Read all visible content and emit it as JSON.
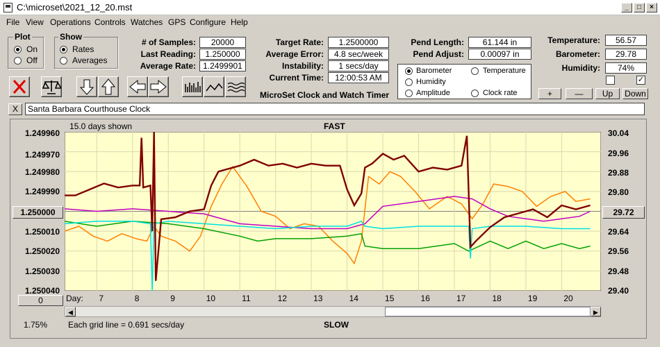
{
  "window": {
    "title": "C:\\microset\\2021_12_20.mst"
  },
  "menu": [
    "File",
    "View",
    "Operations",
    "Controls",
    "Watches",
    "GPS",
    "Configure",
    "Help"
  ],
  "plot_group": {
    "title": "Plot",
    "on": "On",
    "off": "Off",
    "selected": "On"
  },
  "show_group": {
    "title": "Show",
    "rates": "Rates",
    "averages": "Averages",
    "selected": "Rates"
  },
  "stats": {
    "samples_label": "# of Samples:",
    "samples": "20000",
    "last_label": "Last Reading:",
    "last": "1.250000",
    "avg_label": "Average Rate:",
    "avg": "1.2499901",
    "target_label": "Target Rate:",
    "target": "1.2500000",
    "err_label": "Average Error:",
    "err": "4.8 sec/week",
    "inst_label": "Instability:",
    "inst": "1 secs/day",
    "time_label": "Current Time:",
    "time": "12:00:53 AM",
    "pend_len_label": "Pend Length:",
    "pend_len": "61.144 in",
    "pend_adj_label": "Pend Adjust:",
    "pend_adj": "0.00097 in",
    "temp_label": "Temperature:",
    "temp": "56.57",
    "baro_label": "Barometer:",
    "baro": "29.78",
    "hum_label": "Humidity:",
    "hum": "74%"
  },
  "app_subtitle": "MicroSet Clock and Watch Timer",
  "series_select": {
    "barometer": "Barometer",
    "temperature": "Temperature",
    "humidity": "Humidity",
    "amplitude": "Amplitude",
    "clock_rate": "Clock rate",
    "selected": "Barometer",
    "colors": {
      "barometer": "#ff8000",
      "temperature": "#00a000",
      "humidity": "#c000c0",
      "amplitude": "#00e0e0",
      "clock_rate": "#800000"
    }
  },
  "adjust_buttons": {
    "plus": "+",
    "minus": "—",
    "up": "Up",
    "down": "Down"
  },
  "clock_name": "Santa Barbara Courthouse Clock",
  "close_x": "X",
  "plot_info": {
    "days_shown": "15.0 days shown",
    "fast": "FAST",
    "slow": "SLOW",
    "grid_note": "Each grid line = 0.691 secs/day",
    "percent": "1.75%",
    "day_label": "Day:",
    "center_rate": "1.250000",
    "zero_btn": "0",
    "right_value": "29.72"
  },
  "chart_data": {
    "type": "line",
    "left_axis_ticks": [
      "1.249960",
      "1.249970",
      "1.249980",
      "1.249990",
      "1.250010",
      "1.250020",
      "1.250030",
      "1.250040"
    ],
    "right_axis_ticks": [
      "30.04",
      "29.96",
      "29.88",
      "29.80",
      "29.64",
      "29.56",
      "29.48",
      "29.40"
    ],
    "day_ticks": [
      "7",
      "8",
      "9",
      "10",
      "11",
      "12",
      "13",
      "14",
      "15",
      "16",
      "17",
      "18",
      "19",
      "20"
    ],
    "left_range": [
      1.24996,
      1.25004
    ],
    "right_range": [
      29.4,
      30.04
    ],
    "x_range_days": [
      6.1,
      21.1
    ],
    "series": [
      {
        "key": "barometer",
        "color": "#ff8000",
        "x": [
          6.1,
          6.5,
          6.9,
          7.3,
          7.7,
          8.1,
          8.4,
          8.6,
          8.8,
          9.2,
          9.6,
          9.9,
          10.2,
          10.5,
          10.8,
          11.2,
          11.6,
          12.0,
          12.4,
          12.8,
          13.2,
          13.6,
          14.0,
          14.2,
          14.4,
          14.6,
          14.9,
          15.2,
          15.5,
          15.9,
          16.3,
          16.8,
          17.2,
          17.5,
          17.8,
          18.1,
          18.5,
          18.9,
          19.3,
          19.7,
          20.1,
          20.4,
          20.8
        ],
        "values": [
          29.64,
          29.66,
          29.62,
          29.6,
          29.63,
          29.61,
          29.6,
          29.66,
          29.62,
          29.6,
          29.56,
          29.62,
          29.74,
          29.83,
          29.9,
          29.82,
          29.72,
          29.7,
          29.65,
          29.67,
          29.66,
          29.6,
          29.55,
          29.51,
          29.6,
          29.86,
          29.83,
          29.88,
          29.86,
          29.8,
          29.73,
          29.78,
          29.75,
          29.69,
          29.75,
          29.83,
          29.82,
          29.8,
          29.74,
          29.78,
          29.8,
          29.76,
          29.77
        ]
      },
      {
        "key": "temperature",
        "color": "#00a000",
        "x": [
          6.1,
          7.0,
          8.0,
          9.0,
          10.0,
          11.0,
          11.5,
          12.0,
          13.0,
          14.0,
          14.4,
          14.5,
          15.0,
          16.0,
          17.0,
          17.4,
          18.0,
          18.5,
          19.0,
          19.5,
          20.0,
          20.5,
          20.8
        ],
        "values": [
          29.68,
          29.66,
          29.68,
          29.67,
          29.65,
          29.62,
          29.6,
          29.61,
          29.61,
          29.62,
          29.63,
          29.58,
          29.57,
          29.57,
          29.59,
          29.56,
          29.6,
          29.57,
          29.6,
          29.57,
          29.59,
          29.57,
          29.58
        ]
      },
      {
        "key": "humidity",
        "color": "#c000c0",
        "x": [
          6.1,
          7.0,
          8.0,
          9.0,
          10.0,
          11.0,
          12.0,
          13.0,
          14.0,
          14.5,
          15.0,
          16.0,
          17.0,
          17.5,
          18.0,
          18.5,
          19.0,
          19.5,
          20.0,
          20.5,
          20.8
        ],
        "values": [
          29.73,
          29.72,
          29.73,
          29.72,
          29.71,
          29.67,
          29.66,
          29.65,
          29.65,
          29.67,
          29.74,
          29.76,
          29.78,
          29.77,
          29.73,
          29.7,
          29.69,
          29.68,
          29.69,
          29.7,
          29.72
        ]
      },
      {
        "key": "amplitude",
        "color": "#00e0e0",
        "x": [
          6.1,
          7.0,
          8.0,
          8.5,
          8.55,
          8.6,
          9.0,
          10.0,
          11.0,
          12.0,
          13.0,
          14.0,
          14.4,
          14.5,
          15.0,
          16.0,
          17.0,
          17.4,
          17.45,
          17.5,
          18.0,
          19.0,
          20.0,
          20.8
        ],
        "values": [
          29.67,
          29.68,
          29.68,
          29.67,
          29.4,
          29.67,
          29.68,
          29.67,
          29.66,
          29.65,
          29.66,
          29.66,
          29.68,
          29.66,
          29.65,
          29.66,
          29.66,
          29.66,
          29.53,
          29.65,
          29.66,
          29.66,
          29.65,
          29.65
        ]
      },
      {
        "key": "clock_rate",
        "color": "#800000",
        "x": [
          6.1,
          6.4,
          6.8,
          7.2,
          7.6,
          8.0,
          8.2,
          8.25,
          8.3,
          8.5,
          8.55,
          8.6,
          8.65,
          8.8,
          9.2,
          9.6,
          10.0,
          10.2,
          10.4,
          10.6,
          11.0,
          11.4,
          11.8,
          12.2,
          12.6,
          13.0,
          13.4,
          13.8,
          14.0,
          14.2,
          14.4,
          14.5,
          14.7,
          15.0,
          15.3,
          15.6,
          16.0,
          16.4,
          16.8,
          17.2,
          17.35,
          17.45,
          17.6,
          18.0,
          18.4,
          18.8,
          19.2,
          19.6,
          20.0,
          20.4,
          20.8
        ],
        "values": [
          1.249992,
          1.249992,
          1.249989,
          1.249986,
          1.249988,
          1.249987,
          1.249987,
          1.249963,
          1.249988,
          1.249987,
          1.25001,
          1.24995,
          1.250035,
          1.250004,
          1.250003,
          1.25,
          1.249999,
          1.249987,
          1.24998,
          1.249979,
          1.249977,
          1.249974,
          1.249977,
          1.249976,
          1.249978,
          1.249976,
          1.249977,
          1.249977,
          1.249989,
          1.249997,
          1.249991,
          1.249978,
          1.249976,
          1.249971,
          1.249974,
          1.249972,
          1.24998,
          1.249978,
          1.249979,
          1.249977,
          1.249962,
          1.250018,
          1.250015,
          1.250008,
          1.250003,
          1.250001,
          1.249999,
          1.250003,
          1.249997,
          1.249999,
          1.249997
        ]
      }
    ]
  }
}
